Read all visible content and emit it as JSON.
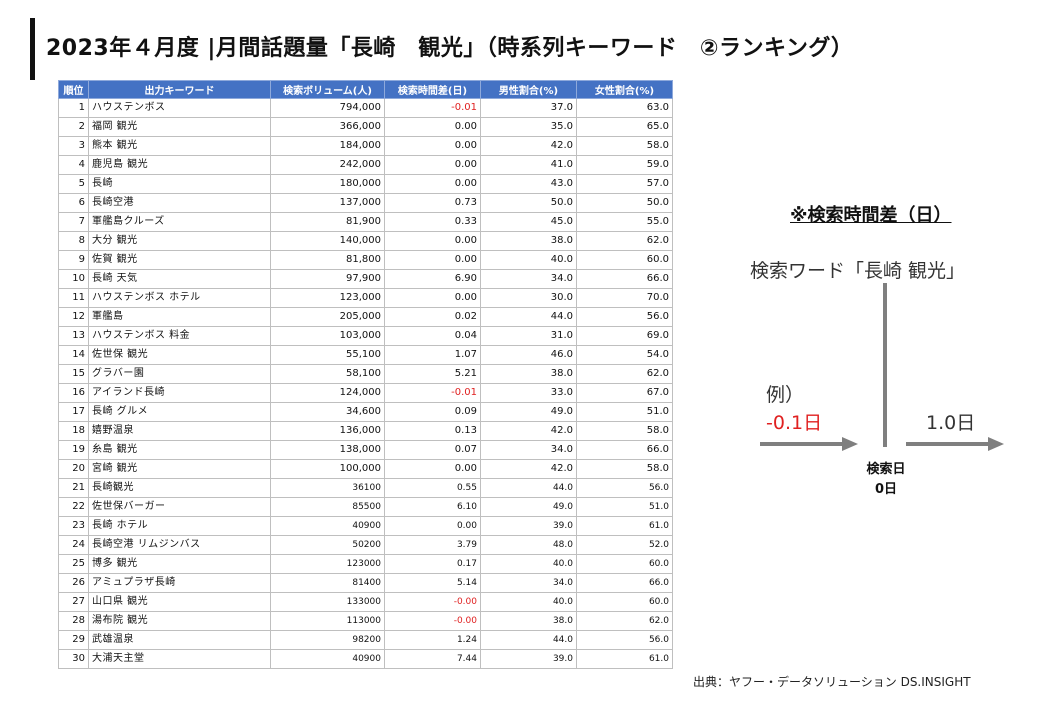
{
  "title": "2023年４月度 |月間話題量「長崎　観光」（時系列キーワード　②ランキング）",
  "table": {
    "headers": [
      "順位",
      "出力キーワード",
      "検索ボリューム(人)",
      "検索時間差(日)",
      "男性割合(%)",
      "女性割合(%)"
    ],
    "rows": [
      {
        "rank": "1",
        "keyword": "ハウステンボス",
        "volume": "794,000",
        "diff": "-0.01",
        "male": "37.0",
        "female": "63.0"
      },
      {
        "rank": "2",
        "keyword": "福岡 観光",
        "volume": "366,000",
        "diff": "0.00",
        "male": "35.0",
        "female": "65.0"
      },
      {
        "rank": "3",
        "keyword": "熊本 観光",
        "volume": "184,000",
        "diff": "0.00",
        "male": "42.0",
        "female": "58.0"
      },
      {
        "rank": "4",
        "keyword": "鹿児島 観光",
        "volume": "242,000",
        "diff": "0.00",
        "male": "41.0",
        "female": "59.0"
      },
      {
        "rank": "5",
        "keyword": "長崎",
        "volume": "180,000",
        "diff": "0.00",
        "male": "43.0",
        "female": "57.0"
      },
      {
        "rank": "6",
        "keyword": "長崎空港",
        "volume": "137,000",
        "diff": "0.73",
        "male": "50.0",
        "female": "50.0"
      },
      {
        "rank": "7",
        "keyword": "軍艦島クルーズ",
        "volume": "81,900",
        "diff": "0.33",
        "male": "45.0",
        "female": "55.0"
      },
      {
        "rank": "8",
        "keyword": "大分 観光",
        "volume": "140,000",
        "diff": "0.00",
        "male": "38.0",
        "female": "62.0"
      },
      {
        "rank": "9",
        "keyword": "佐賀 観光",
        "volume": "81,800",
        "diff": "0.00",
        "male": "40.0",
        "female": "60.0"
      },
      {
        "rank": "10",
        "keyword": "長崎 天気",
        "volume": "97,900",
        "diff": "6.90",
        "male": "34.0",
        "female": "66.0"
      },
      {
        "rank": "11",
        "keyword": "ハウステンボス ホテル",
        "volume": "123,000",
        "diff": "0.00",
        "male": "30.0",
        "female": "70.0"
      },
      {
        "rank": "12",
        "keyword": "軍艦島",
        "volume": "205,000",
        "diff": "0.02",
        "male": "44.0",
        "female": "56.0"
      },
      {
        "rank": "13",
        "keyword": "ハウステンボス 料金",
        "volume": "103,000",
        "diff": "0.04",
        "male": "31.0",
        "female": "69.0"
      },
      {
        "rank": "14",
        "keyword": "佐世保 観光",
        "volume": "55,100",
        "diff": "1.07",
        "male": "46.0",
        "female": "54.0"
      },
      {
        "rank": "15",
        "keyword": "グラバー園",
        "volume": "58,100",
        "diff": "5.21",
        "male": "38.0",
        "female": "62.0"
      },
      {
        "rank": "16",
        "keyword": "アイランド長崎",
        "volume": "124,000",
        "diff": "-0.01",
        "male": "33.0",
        "female": "67.0"
      },
      {
        "rank": "17",
        "keyword": "長崎 グルメ",
        "volume": "34,600",
        "diff": "0.09",
        "male": "49.0",
        "female": "51.0"
      },
      {
        "rank": "18",
        "keyword": "嬉野温泉",
        "volume": "136,000",
        "diff": "0.13",
        "male": "42.0",
        "female": "58.0"
      },
      {
        "rank": "19",
        "keyword": "糸島 観光",
        "volume": "138,000",
        "diff": "0.07",
        "male": "34.0",
        "female": "66.0"
      },
      {
        "rank": "20",
        "keyword": "宮崎 観光",
        "volume": "100,000",
        "diff": "0.00",
        "male": "42.0",
        "female": "58.0"
      },
      {
        "rank": "21",
        "keyword": "長崎観光",
        "volume": "36100",
        "diff": "0.55",
        "male": "44.0",
        "female": "56.0"
      },
      {
        "rank": "22",
        "keyword": "佐世保バーガー",
        "volume": "85500",
        "diff": "6.10",
        "male": "49.0",
        "female": "51.0"
      },
      {
        "rank": "23",
        "keyword": "長崎 ホテル",
        "volume": "40900",
        "diff": "0.00",
        "male": "39.0",
        "female": "61.0"
      },
      {
        "rank": "24",
        "keyword": "長崎空港 リムジンバス",
        "volume": "50200",
        "diff": "3.79",
        "male": "48.0",
        "female": "52.0"
      },
      {
        "rank": "25",
        "keyword": "博多 観光",
        "volume": "123000",
        "diff": "0.17",
        "male": "40.0",
        "female": "60.0"
      },
      {
        "rank": "26",
        "keyword": "アミュプラザ長崎",
        "volume": "81400",
        "diff": "5.14",
        "male": "34.0",
        "female": "66.0"
      },
      {
        "rank": "27",
        "keyword": "山口県 観光",
        "volume": "133000",
        "diff": "-0.00",
        "male": "40.0",
        "female": "60.0"
      },
      {
        "rank": "28",
        "keyword": "湯布院 観光",
        "volume": "113000",
        "diff": "-0.00",
        "male": "38.0",
        "female": "62.0"
      },
      {
        "rank": "29",
        "keyword": "武雄温泉",
        "volume": "98200",
        "diff": "1.24",
        "male": "44.0",
        "female": "56.0"
      },
      {
        "rank": "30",
        "keyword": "大浦天主堂",
        "volume": "40900",
        "diff": "7.44",
        "male": "39.0",
        "female": "61.0"
      }
    ]
  },
  "note": {
    "title": "※検索時間差（日）",
    "word": "検索ワード「長崎 観光」",
    "example_label": "例）",
    "example_negative": "-0.1日",
    "example_positive": "1.0日",
    "search_day_line1": "検索日",
    "search_day_line2": "0日"
  },
  "source": "出典：ヤフー・データソリューション DS.INSIGHT",
  "colors": {
    "header_bg": "#4472c4",
    "negative": "#e02020",
    "axis": "#7f7f7f"
  }
}
